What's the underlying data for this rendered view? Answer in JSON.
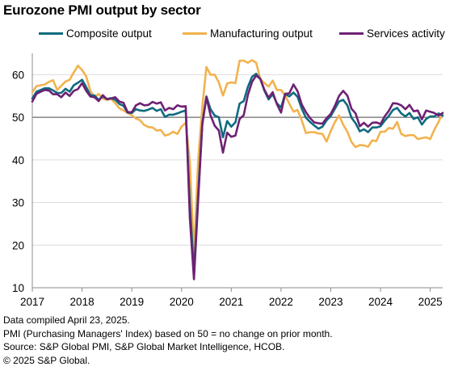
{
  "chart_data": {
    "type": "line",
    "title": "Eurozone PMI output by sector",
    "xlabel": "",
    "ylabel": "",
    "x_start": "2017-01",
    "x_ticks": [
      "2017",
      "2018",
      "2019",
      "2020",
      "2021",
      "2022",
      "2023",
      "2024",
      "2025"
    ],
    "y_ticks": [
      10,
      20,
      30,
      40,
      50,
      60
    ],
    "ylim": [
      10,
      65
    ],
    "xlim": [
      "2017-01",
      "2025-04"
    ],
    "reference_line": 50,
    "grid": "horizontal",
    "legend_position": "top",
    "series": [
      {
        "name": "Composite output",
        "color": "#0e6b7f",
        "values": [
          54.4,
          56.0,
          56.4,
          56.8,
          56.8,
          56.3,
          55.7,
          55.7,
          56.7,
          56.0,
          57.5,
          58.1,
          58.8,
          57.1,
          55.2,
          55.1,
          54.1,
          54.9,
          54.3,
          54.5,
          54.1,
          53.1,
          52.7,
          51.1,
          51.0,
          51.9,
          51.6,
          51.5,
          51.8,
          52.2,
          51.5,
          51.9,
          50.1,
          50.6,
          50.6,
          50.9,
          51.3,
          51.6,
          29.7,
          13.6,
          31.9,
          48.5,
          54.9,
          51.9,
          50.4,
          50.0,
          45.3,
          49.1,
          47.8,
          48.8,
          53.2,
          53.8,
          57.1,
          59.5,
          60.2,
          59.0,
          56.2,
          54.2,
          55.4,
          53.3,
          52.3,
          55.5,
          54.9,
          55.8,
          54.8,
          52.0,
          49.9,
          48.9,
          48.1,
          47.3,
          47.8,
          49.3,
          50.3,
          52.0,
          53.7,
          54.1,
          52.8,
          49.9,
          48.6,
          46.7,
          47.2,
          46.5,
          47.6,
          47.6,
          47.9,
          49.2,
          50.3,
          51.7,
          52.2,
          50.9,
          50.2,
          51.0,
          49.6,
          50.0,
          48.3,
          49.6,
          50.2,
          50.2,
          50.9,
          50.4
        ]
      },
      {
        "name": "Manufacturing output",
        "color": "#f2b24e",
        "values": [
          55.9,
          57.3,
          57.5,
          57.7,
          58.3,
          58.7,
          56.4,
          57.4,
          58.4,
          58.8,
          60.5,
          62.1,
          61.1,
          59.6,
          56.2,
          54.7,
          55.5,
          54.4,
          54.1,
          54.3,
          53.3,
          52.1,
          51.6,
          51.0,
          50.5,
          49.7,
          49.3,
          48.2,
          47.7,
          47.6,
          46.9,
          47.0,
          45.7,
          46.0,
          46.6,
          46.1,
          47.8,
          48.7,
          39.5,
          18.1,
          39.9,
          52.3,
          61.8,
          60.0,
          60.0,
          58.2,
          55.1,
          57.9,
          58.2,
          58.0,
          63.3,
          63.3,
          62.8,
          63.4,
          62.8,
          59.0,
          58.0,
          57.2,
          58.6,
          56.4,
          56.4,
          55.1,
          53.2,
          51.3,
          51.7,
          49.3,
          46.3,
          46.5,
          46.5,
          46.2,
          46.1,
          44.3,
          46.8,
          48.9,
          50.4,
          48.3,
          46.6,
          44.2,
          43.0,
          43.5,
          43.4,
          43.1,
          44.6,
          44.4,
          46.6,
          46.6,
          47.5,
          47.3,
          48.9,
          46.1,
          45.6,
          45.8,
          45.8,
          44.9,
          45.1,
          45.3,
          44.9,
          47.1,
          48.9,
          51.0
        ]
      },
      {
        "name": "Services activity",
        "color": "#6e2173",
        "values": [
          53.7,
          55.5,
          56.0,
          56.4,
          56.3,
          55.4,
          55.4,
          54.7,
          55.8,
          55.0,
          56.2,
          56.6,
          58.0,
          56.2,
          54.9,
          54.7,
          53.8,
          55.2,
          54.2,
          54.4,
          54.7,
          53.7,
          53.4,
          51.2,
          51.2,
          52.8,
          53.3,
          52.8,
          52.9,
          53.6,
          53.2,
          53.5,
          51.6,
          52.2,
          51.9,
          52.8,
          52.5,
          52.6,
          26.4,
          12.0,
          30.5,
          48.3,
          54.7,
          50.5,
          48.0,
          46.9,
          41.7,
          46.4,
          45.4,
          45.7,
          49.6,
          50.5,
          55.2,
          58.3,
          59.8,
          59.0,
          56.4,
          54.6,
          55.9,
          53.1,
          51.1,
          55.5,
          55.6,
          57.7,
          56.1,
          53.0,
          51.2,
          49.8,
          48.8,
          48.6,
          48.5,
          49.8,
          50.8,
          52.7,
          55.0,
          56.2,
          55.1,
          52.0,
          50.9,
          47.9,
          48.7,
          47.8,
          48.7,
          48.8,
          48.4,
          50.2,
          51.5,
          53.3,
          53.2,
          52.8,
          51.9,
          52.9,
          51.4,
          51.6,
          49.5,
          51.6,
          51.3,
          51.0,
          50.4,
          51.0
        ]
      }
    ]
  },
  "notes": [
    "Data compiled April 23, 2025.",
    "PMI (Purchasing Managers' Index) based on 50 = no change on prior month.",
    "Source: S&P Global PMI, S&P Global Market Intelligence, HCOB.",
    "© 2025 S&P Global."
  ]
}
